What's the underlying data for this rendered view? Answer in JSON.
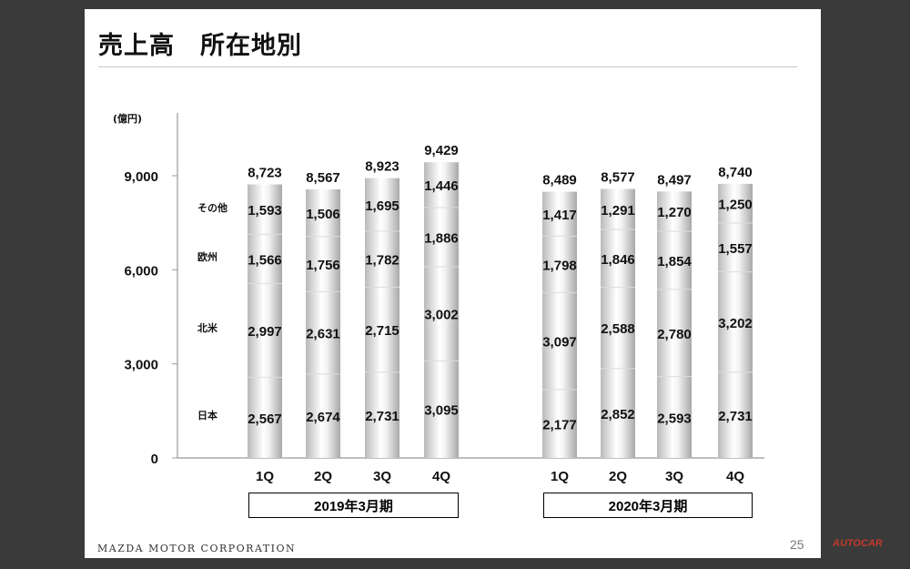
{
  "title": "売上高　所在地別",
  "footer": {
    "company": "MAZDA MOTOR CORPORATION",
    "page_number": "25",
    "watermark": "AUTOCAR"
  },
  "chart_data": {
    "type": "bar",
    "stacked": true,
    "unit_label": "(億円)",
    "ylim": [
      0,
      11000
    ],
    "y_ticks": [
      {
        "value": 0,
        "label": "0"
      },
      {
        "value": 3000,
        "label": "3,000"
      },
      {
        "value": 6000,
        "label": "6,000"
      },
      {
        "value": 9000,
        "label": "9,000"
      }
    ],
    "groups": [
      {
        "label": "2019年3月期",
        "categories": [
          "1Q",
          "2Q",
          "3Q",
          "4Q"
        ],
        "totals": [
          "8,723",
          "8,567",
          "8,923",
          "9,429"
        ]
      },
      {
        "label": "2020年3月期",
        "categories": [
          "1Q",
          "2Q",
          "3Q",
          "4Q"
        ],
        "totals": [
          "8,489",
          "8,577",
          "8,497",
          "8,740"
        ]
      }
    ],
    "series": [
      {
        "name": "日本",
        "values": [
          [
            2567,
            2674,
            2731,
            3095
          ],
          [
            2177,
            2852,
            2593,
            2731
          ]
        ]
      },
      {
        "name": "北米",
        "values": [
          [
            2997,
            2631,
            2715,
            3002
          ],
          [
            3097,
            2588,
            2780,
            3202
          ]
        ]
      },
      {
        "name": "欧州",
        "values": [
          [
            1566,
            1756,
            1782,
            1886
          ],
          [
            1798,
            1846,
            1854,
            1557
          ]
        ]
      },
      {
        "name": "その他",
        "values": [
          [
            1593,
            1506,
            1695,
            1446
          ],
          [
            1417,
            1291,
            1270,
            1250
          ]
        ]
      }
    ],
    "totals": [
      [
        8723,
        8567,
        8923,
        9429
      ],
      [
        8489,
        8577,
        8497,
        8740
      ]
    ],
    "grid": false,
    "legend": "left"
  }
}
